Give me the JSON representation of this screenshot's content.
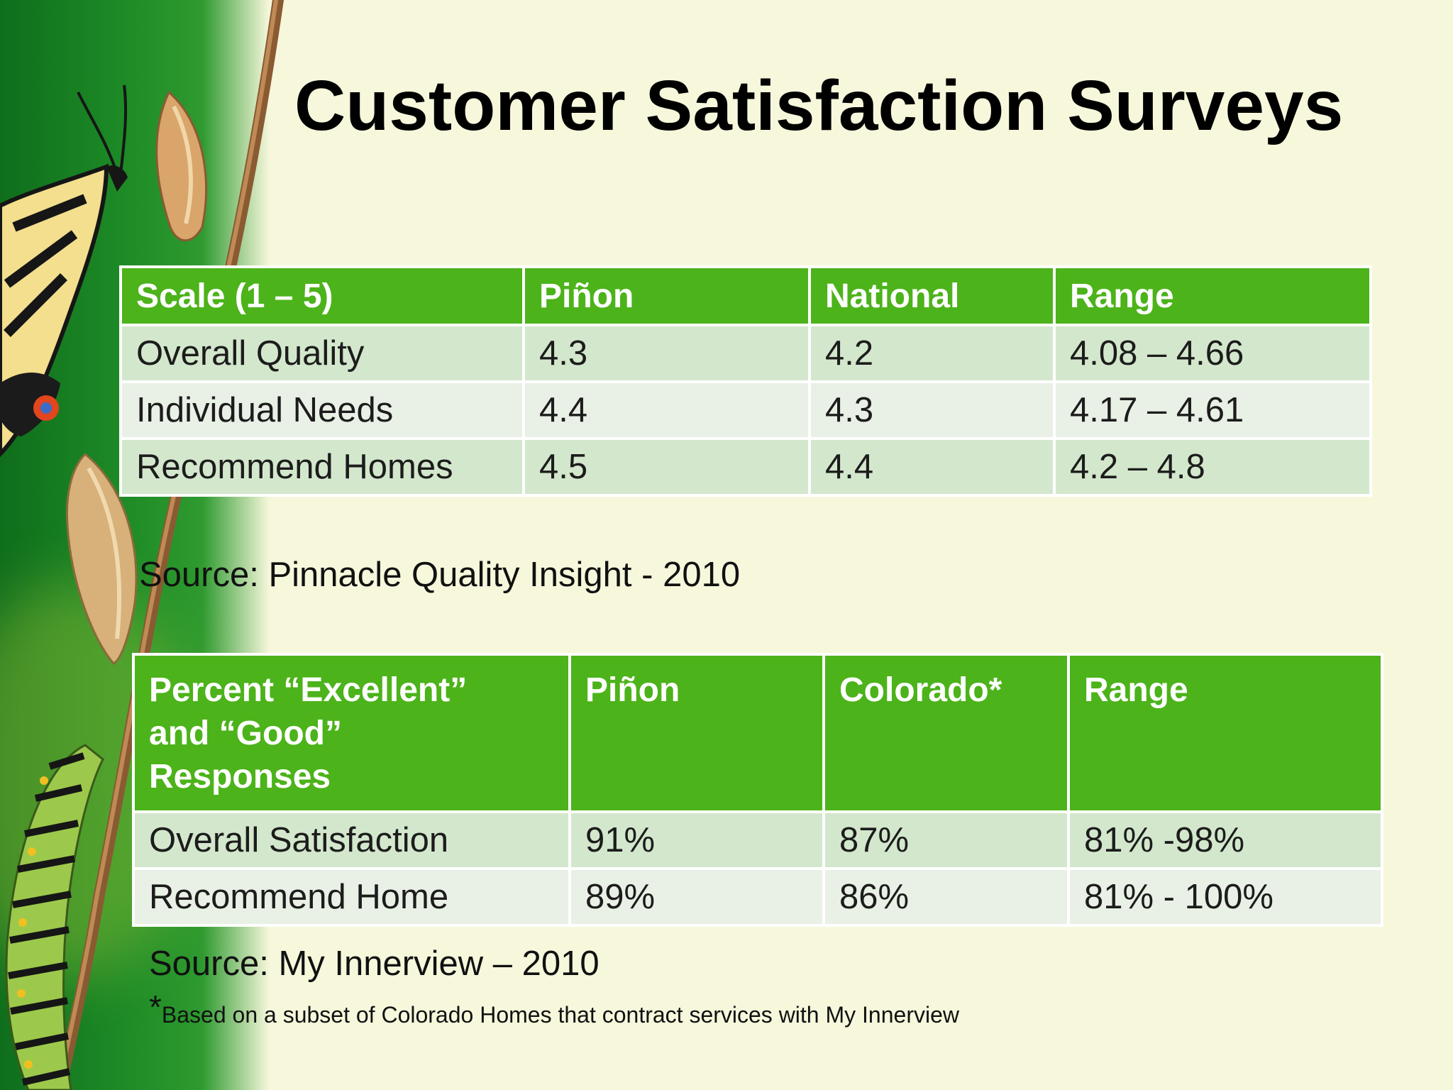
{
  "title": "Customer Satisfaction Surveys",
  "table1": {
    "headers": [
      "Scale (1 – 5)",
      "Piñon",
      "National",
      "Range"
    ],
    "rows": [
      [
        "Overall Quality",
        "4.3",
        "4.2",
        "4.08 – 4.66"
      ],
      [
        "Individual Needs",
        "4.4",
        "4.3",
        "4.17 – 4.61"
      ],
      [
        "Recommend Homes",
        "4.5",
        "4.4",
        "4.2 – 4.8"
      ]
    ]
  },
  "source1": "Source: Pinnacle Quality Insight - 2010",
  "table2": {
    "headers": [
      "Percent “Excellent” and “Good” Responses",
      "Piñon",
      "Colorado*",
      "Range"
    ],
    "rows": [
      [
        "Overall Satisfaction",
        "91%",
        "87%",
        "81% -98%"
      ],
      [
        "Recommend Home",
        "89%",
        "86%",
        "81% - 100%"
      ]
    ]
  },
  "source2": "Source: My Innerview – 2010",
  "footnote": {
    "marker": "*",
    "text": "Based on a subset of Colorado Homes that contract services with My Innerview"
  },
  "colors": {
    "background": "#f7f7dc",
    "header_green": "#4cb31a",
    "row_light_green": "#d3e7cc",
    "row_pale": "#e9f0e5"
  },
  "decorations": [
    "butterfly-icon",
    "chrysalis-icon",
    "caterpillar-icon",
    "twig"
  ]
}
